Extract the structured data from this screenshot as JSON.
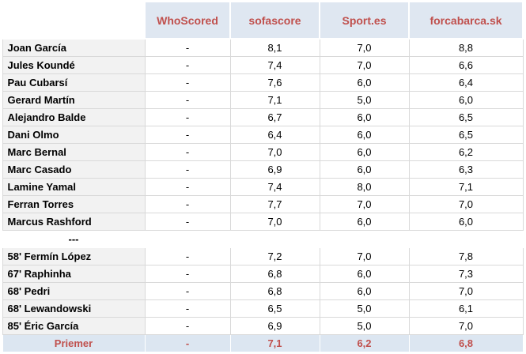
{
  "table": {
    "columns": [
      "WhoScored",
      "sofascore",
      "Sport.es",
      "forcabarca.sk"
    ],
    "rows": [
      [
        "Joan García",
        "-",
        "8,1",
        "7,0",
        "8,8"
      ],
      [
        "Jules Koundé",
        "-",
        "7,4",
        "7,0",
        "6,6"
      ],
      [
        "Pau Cubarsí",
        "-",
        "7,6",
        "6,0",
        "6,4"
      ],
      [
        "Gerard Martín",
        "-",
        "7,1",
        "5,0",
        "6,0"
      ],
      [
        "Alejandro Balde",
        "-",
        "6,7",
        "6,0",
        "6,5"
      ],
      [
        "Dani Olmo",
        "-",
        "6,4",
        "6,0",
        "6,5"
      ],
      [
        "Marc Bernal",
        "-",
        "7,0",
        "6,0",
        "6,2"
      ],
      [
        "Marc Casado",
        "-",
        "6,9",
        "6,0",
        "6,3"
      ],
      [
        "Lamine Yamal",
        "-",
        "7,4",
        "8,0",
        "7,1"
      ],
      [
        "Ferran Torres",
        "-",
        "7,7",
        "7,0",
        "7,0"
      ],
      [
        "Marcus Rashford",
        "-",
        "7,0",
        "6,0",
        "6,0"
      ],
      [
        "---"
      ],
      [
        "58' Fermín López",
        "-",
        "7,2",
        "7,0",
        "7,8"
      ],
      [
        "67' Raphinha",
        "-",
        "6,8",
        "6,0",
        "7,3"
      ],
      [
        "68' Pedri",
        "-",
        "6,8",
        "6,0",
        "7,0"
      ],
      [
        "68' Lewandowski",
        "-",
        "6,5",
        "5,0",
        "6,1"
      ],
      [
        "85' Éric García",
        "-",
        "6,9",
        "5,0",
        "7,0"
      ]
    ],
    "footer": [
      "Priemer",
      "-",
      "7,1",
      "6,2",
      "6,8"
    ]
  }
}
